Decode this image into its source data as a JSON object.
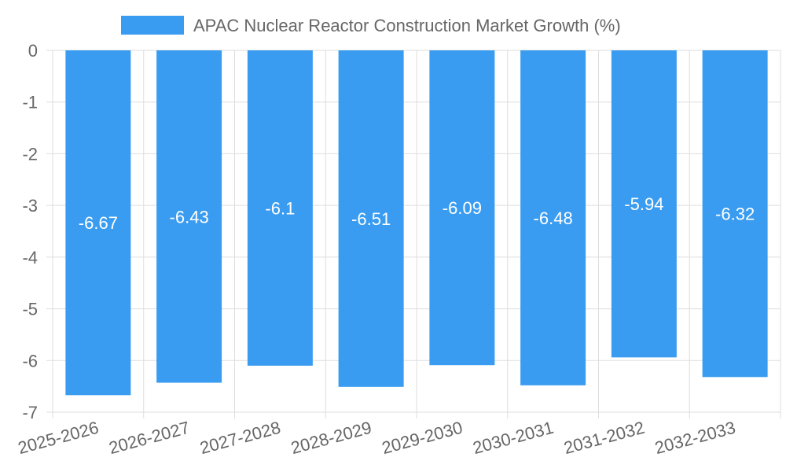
{
  "chart_data": {
    "type": "bar",
    "legend": {
      "label": "APAC Nuclear Reactor Construction Market Growth (%)",
      "position": "top-center"
    },
    "categories": [
      "2025-2026",
      "2026-2027",
      "2027-2028",
      "2028-2029",
      "2029-2030",
      "2030-2031",
      "2031-2032",
      "2032-2033"
    ],
    "series": [
      {
        "name": "APAC Nuclear Reactor Construction Market Growth (%)",
        "values": [
          -6.67,
          -6.43,
          -6.1,
          -6.51,
          -6.09,
          -6.48,
          -5.94,
          -6.32
        ],
        "color": "#3a9cf0"
      }
    ],
    "data_labels": [
      "-6.67",
      "-6.43",
      "-6.1",
      "-6.51",
      "-6.09",
      "-6.48",
      "-5.94",
      "-6.32"
    ],
    "ylim": [
      -7,
      0
    ],
    "yticks": [
      0,
      -1,
      -2,
      -3,
      -4,
      -5,
      -6,
      -7
    ],
    "grid": true,
    "colors": {
      "bar": "#3a9cf0",
      "grid": "#dddddd",
      "text": "#666666",
      "value_label": "#ffffff"
    }
  }
}
